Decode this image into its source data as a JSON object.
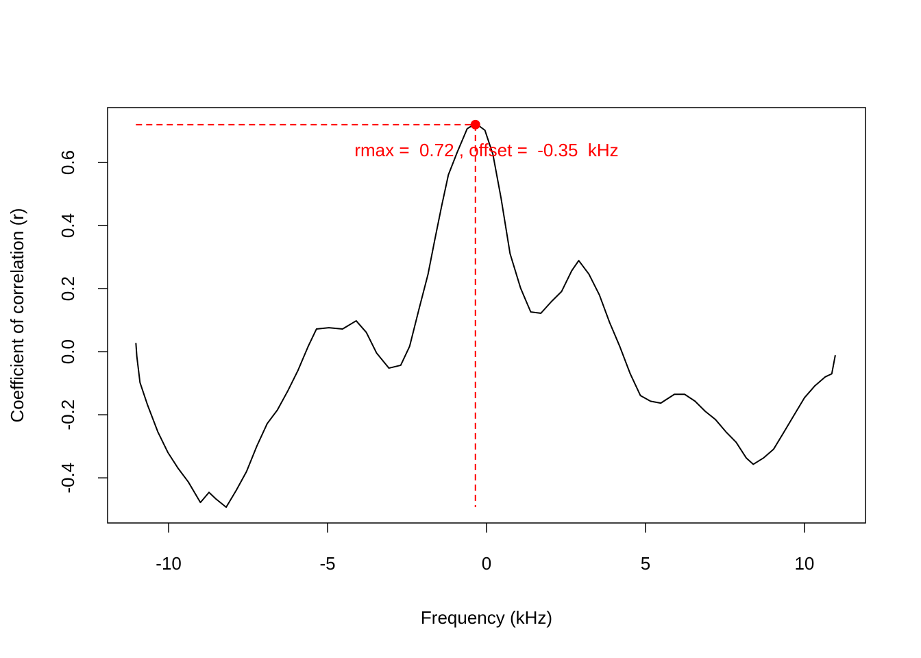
{
  "chart_data": {
    "type": "line",
    "x_label": "Frequency (kHz)",
    "y_label": "Coefficient of correlation (r)",
    "xlim": [
      -11.92,
      11.92
    ],
    "ylim": [
      -0.543,
      0.774
    ],
    "xticks": [
      -10,
      -5,
      0,
      5,
      10
    ],
    "yticks": [
      -0.4,
      -0.2,
      {
        "value": 0,
        "label": "0.0"
      },
      0.2,
      0.4,
      0.6
    ],
    "series": [
      {
        "color": "#000000",
        "x": [
          -11.03,
          -11,
          -10.9,
          -10.67,
          -10.34,
          -10.02,
          -9.7,
          -9.38,
          -9.0,
          -8.73,
          -8.51,
          -8.19,
          -7.87,
          -7.55,
          -7.22,
          -6.9,
          -6.58,
          -6.25,
          -5.93,
          -5.61,
          -5.35,
          -4.96,
          -4.53,
          -4.1,
          -3.78,
          -3.46,
          -3.07,
          -2.7,
          -2.42,
          -2.12,
          -1.84,
          -1.63,
          -1.41,
          -1.2,
          -0.92,
          -0.61,
          -0.34,
          -0.05,
          0.2,
          0.46,
          0.74,
          1.07,
          1.39,
          1.71,
          2.04,
          2.36,
          2.68,
          2.9,
          3.22,
          3.55,
          3.87,
          4.19,
          4.52,
          4.84,
          5.16,
          5.48,
          5.91,
          6.23,
          6.56,
          6.88,
          7.2,
          7.53,
          7.85,
          8.17,
          8.39,
          8.71,
          9.03,
          9.36,
          9.68,
          10.0,
          10.32,
          10.65,
          10.86,
          10.97
        ],
        "values": [
          0.028,
          -0.015,
          -0.098,
          -0.167,
          -0.254,
          -0.32,
          -0.37,
          -0.413,
          -0.478,
          -0.446,
          -0.467,
          -0.493,
          -0.439,
          -0.38,
          -0.298,
          -0.228,
          -0.185,
          -0.124,
          -0.059,
          0.017,
          0.072,
          0.076,
          0.072,
          0.098,
          0.061,
          -0.004,
          -0.052,
          -0.043,
          0.017,
          0.137,
          0.246,
          0.354,
          0.463,
          0.561,
          0.633,
          0.707,
          0.724,
          0.702,
          0.626,
          0.485,
          0.311,
          0.202,
          0.126,
          0.122,
          0.159,
          0.191,
          0.257,
          0.289,
          0.246,
          0.18,
          0.093,
          0.017,
          -0.07,
          -0.139,
          -0.157,
          -0.163,
          -0.135,
          -0.135,
          -0.157,
          -0.189,
          -0.215,
          -0.254,
          -0.287,
          -0.337,
          -0.357,
          -0.337,
          -0.309,
          -0.254,
          -0.2,
          -0.146,
          -0.109,
          -0.08,
          -0.07,
          -0.011
        ]
      }
    ],
    "peak": {
      "x": -0.35,
      "y": 0.72,
      "color": "#ff0000",
      "annotation": "rmax =  0.72 , offset =  -0.35  kHz"
    }
  }
}
